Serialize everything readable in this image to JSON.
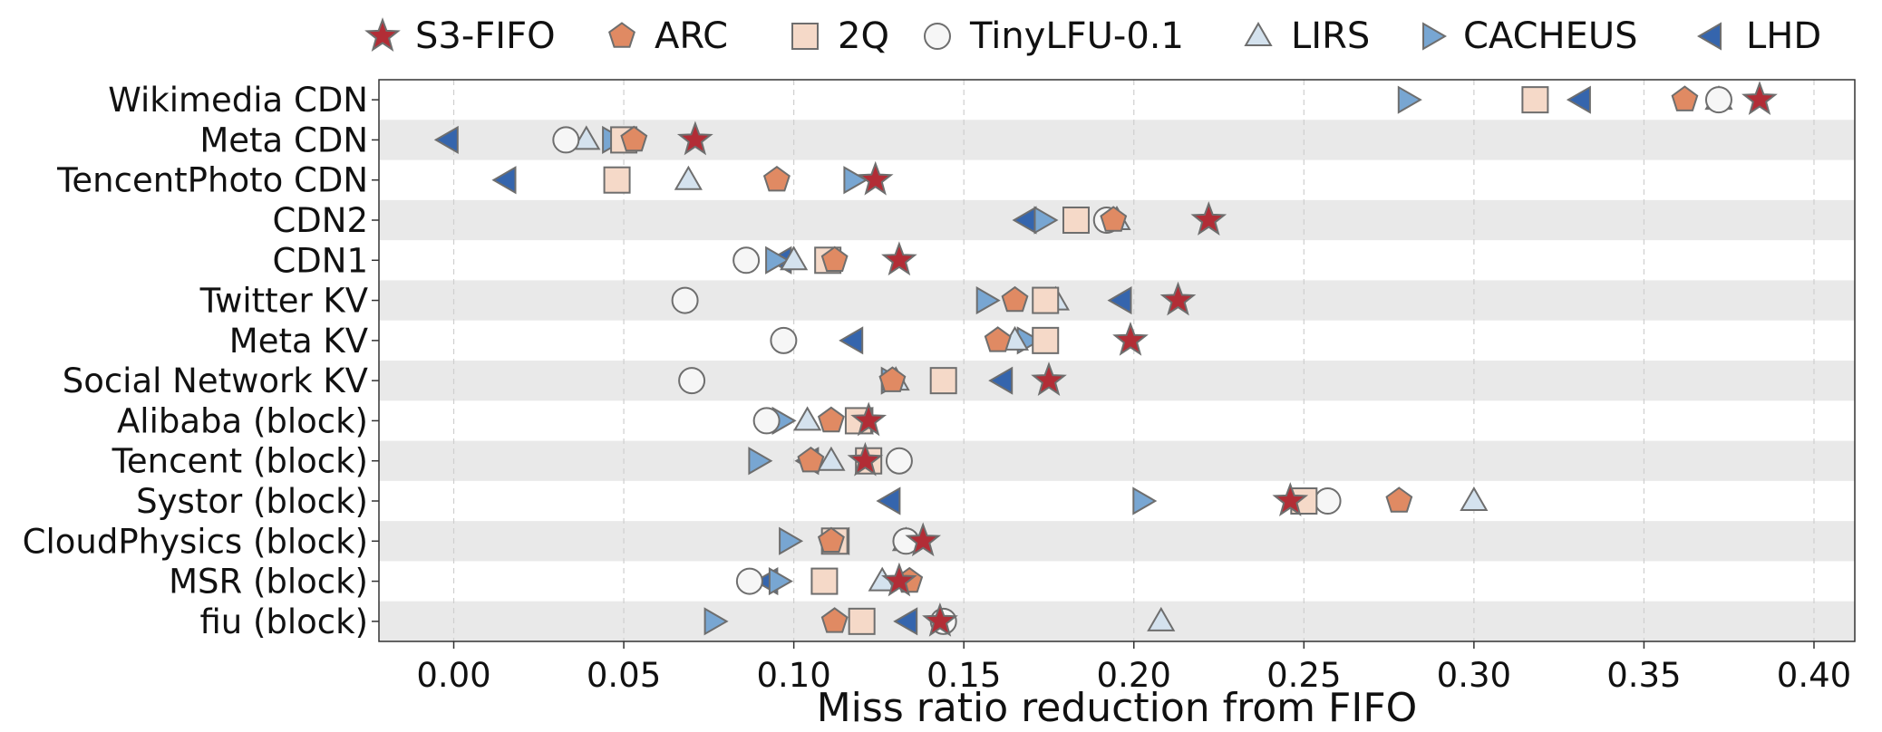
{
  "chart_data": {
    "type": "scatter",
    "title": "",
    "xlabel": "Miss ratio reduction from FIFO",
    "ylabel": "",
    "xlim": [
      -0.022,
      0.412
    ],
    "xticks": [
      0.0,
      0.05,
      0.1,
      0.15,
      0.2,
      0.25,
      0.3,
      0.35,
      0.4
    ],
    "xtick_labels": [
      "0.00",
      "0.05",
      "0.10",
      "0.15",
      "0.20",
      "0.25",
      "0.30",
      "0.35",
      "0.40"
    ],
    "grid": "vertical dashed",
    "legend_position": "top",
    "categories": [
      "Wikimedia CDN",
      "Meta CDN",
      "TencentPhoto CDN",
      "CDN2",
      "CDN1",
      "Twitter KV",
      "Meta KV",
      "Social Network KV",
      "Alibaba (block)",
      "Tencent (block)",
      "Systor (block)",
      "CloudPhysics (block)",
      "MSR (block)",
      "fiu (block)"
    ],
    "series": [
      {
        "name": "S3-FIFO",
        "marker": "star",
        "color": "#b22d36",
        "values": [
          0.384,
          0.071,
          0.124,
          0.222,
          0.131,
          0.213,
          0.199,
          0.175,
          0.122,
          0.121,
          0.246,
          0.138,
          0.131,
          0.143
        ]
      },
      {
        "name": "ARC",
        "marker": "pentagon",
        "color": "#e08a63",
        "values": [
          0.362,
          0.053,
          0.095,
          0.194,
          0.112,
          0.165,
          0.16,
          0.129,
          0.111,
          0.105,
          0.278,
          0.111,
          0.134,
          0.112
        ]
      },
      {
        "name": "2Q",
        "marker": "square",
        "color": "#f5d9c8",
        "values": [
          0.318,
          0.05,
          0.048,
          0.183,
          0.11,
          0.174,
          0.174,
          0.144,
          0.119,
          0.122,
          0.25,
          0.112,
          0.109,
          0.12
        ]
      },
      {
        "name": "TinyLFU-0.1",
        "marker": "circle",
        "color": "#f6f6f6",
        "values": [
          0.372,
          0.033,
          null,
          0.192,
          0.086,
          0.068,
          0.097,
          0.07,
          0.092,
          0.131,
          0.257,
          0.133,
          0.087,
          0.144
        ]
      },
      {
        "name": "LIRS",
        "marker": "triangle-up",
        "color": "#d4e2ee",
        "values": [
          0.372,
          0.039,
          0.069,
          0.195,
          0.1,
          0.177,
          0.165,
          0.13,
          0.104,
          0.111,
          0.3,
          0.133,
          0.126,
          0.208
        ]
      },
      {
        "name": "CACHEUS",
        "marker": "triangle-right",
        "color": "#78a6d2",
        "values": [
          0.28,
          0.046,
          0.117,
          0.173,
          0.094,
          0.156,
          0.168,
          0.128,
          0.096,
          0.089,
          0.202,
          0.098,
          0.095,
          0.076
        ]
      },
      {
        "name": "LHD",
        "marker": "triangle-left",
        "color": "#3565ad",
        "values": [
          0.332,
          -0.001,
          0.016,
          0.169,
          0.097,
          0.197,
          0.118,
          0.162,
          0.121,
          0.105,
          0.129,
          0.114,
          0.093,
          0.134
        ]
      }
    ]
  }
}
